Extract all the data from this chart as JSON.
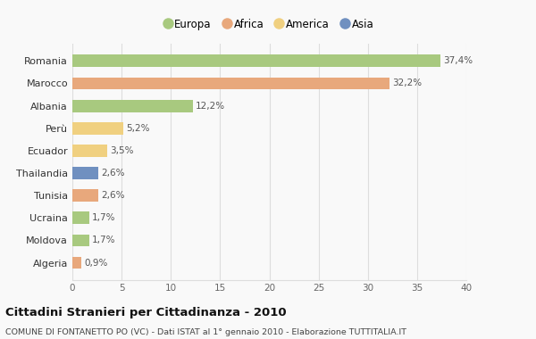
{
  "countries": [
    "Romania",
    "Marocco",
    "Albania",
    "Perù",
    "Ecuador",
    "Thailandia",
    "Tunisia",
    "Ucraina",
    "Moldova",
    "Algeria"
  ],
  "values": [
    37.4,
    32.2,
    12.2,
    5.2,
    3.5,
    2.6,
    2.6,
    1.7,
    1.7,
    0.9
  ],
  "labels": [
    "37,4%",
    "32,2%",
    "12,2%",
    "5,2%",
    "3,5%",
    "2,6%",
    "2,6%",
    "1,7%",
    "1,7%",
    "0,9%"
  ],
  "continents": [
    "Europa",
    "Africa",
    "Europa",
    "America",
    "America",
    "Asia",
    "Africa",
    "Europa",
    "Europa",
    "Africa"
  ],
  "colors": {
    "Europa": "#a8c97f",
    "Africa": "#e8a87c",
    "America": "#f0d080",
    "Asia": "#7090c0"
  },
  "title": "Cittadini Stranieri per Cittadinanza - 2010",
  "subtitle": "COMUNE DI FONTANETTO PO (VC) - Dati ISTAT al 1° gennaio 2010 - Elaborazione TUTTITALIA.IT",
  "xlim": [
    0,
    40
  ],
  "xticks": [
    0,
    5,
    10,
    15,
    20,
    25,
    30,
    35,
    40
  ],
  "background_color": "#f9f9f9",
  "grid_color": "#dddddd",
  "bar_height": 0.55
}
